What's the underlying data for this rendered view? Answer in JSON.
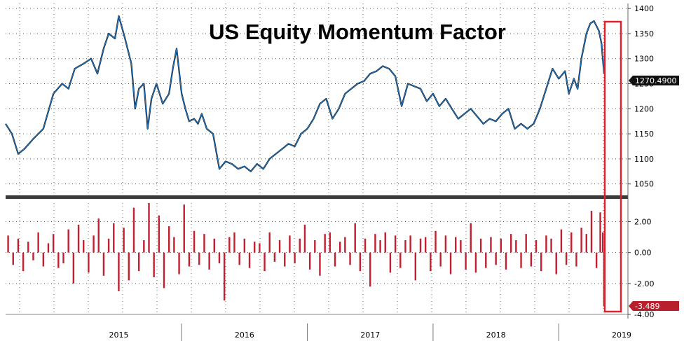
{
  "chart_data": [
    {
      "type": "line",
      "title": "US Equity Momentum Factor",
      "y_ticks": [
        "1400",
        "1350",
        "1300",
        "1250",
        "1200",
        "1150",
        "1100",
        "1050"
      ],
      "ylim": [
        1030,
        1410
      ],
      "x_ticks": [
        "2015",
        "2016",
        "2017",
        "2018",
        "2019"
      ],
      "xlim": [
        2014.6,
        2019.55
      ],
      "last_value_label": "1270.4900",
      "series": [
        {
          "color": "#1f78c8",
          "x": [
            2014.6,
            2014.65,
            2014.7,
            2014.75,
            2014.82,
            2014.9,
            2014.98,
            2015.05,
            2015.1,
            2015.15,
            2015.22,
            2015.28,
            2015.33,
            2015.38,
            2015.42,
            2015.47,
            2015.5,
            2015.55,
            2015.6,
            2015.63,
            2015.66,
            2015.7,
            2015.73,
            2015.76,
            2015.8,
            2015.85,
            2015.9,
            2015.93,
            2015.96,
            2016.0,
            2016.03,
            2016.06,
            2016.1,
            2016.13,
            2016.16,
            2016.2,
            2016.25,
            2016.3,
            2016.35,
            2016.4,
            2016.45,
            2016.5,
            2016.55,
            2016.6,
            2016.65,
            2016.7,
            2016.75,
            2016.8,
            2016.85,
            2016.9,
            2016.95,
            2017.0,
            2017.05,
            2017.1,
            2017.15,
            2017.2,
            2017.25,
            2017.3,
            2017.35,
            2017.4,
            2017.45,
            2017.5,
            2017.55,
            2017.6,
            2017.65,
            2017.7,
            2017.75,
            2017.8,
            2017.85,
            2017.9,
            2017.95,
            2018.0,
            2018.05,
            2018.1,
            2018.15,
            2018.2,
            2018.25,
            2018.3,
            2018.35,
            2018.4,
            2018.45,
            2018.5,
            2018.55,
            2018.6,
            2018.65,
            2018.7,
            2018.75,
            2018.8,
            2018.85,
            2018.9,
            2018.95,
            2019.0,
            2019.05,
            2019.08,
            2019.12,
            2019.15,
            2019.18,
            2019.22,
            2019.25,
            2019.28,
            2019.3,
            2019.32,
            2019.34,
            2019.36
          ],
          "values": [
            1170,
            1150,
            1110,
            1120,
            1140,
            1160,
            1230,
            1250,
            1240,
            1280,
            1290,
            1300,
            1270,
            1320,
            1350,
            1340,
            1385,
            1340,
            1290,
            1200,
            1240,
            1250,
            1160,
            1220,
            1250,
            1210,
            1230,
            1280,
            1320,
            1230,
            1200,
            1175,
            1180,
            1170,
            1190,
            1160,
            1150,
            1080,
            1095,
            1090,
            1080,
            1085,
            1075,
            1090,
            1080,
            1100,
            1110,
            1120,
            1130,
            1125,
            1150,
            1160,
            1180,
            1210,
            1220,
            1180,
            1200,
            1230,
            1240,
            1250,
            1255,
            1270,
            1275,
            1285,
            1280,
            1265,
            1205,
            1250,
            1245,
            1240,
            1215,
            1230,
            1205,
            1220,
            1200,
            1180,
            1190,
            1200,
            1185,
            1170,
            1180,
            1175,
            1190,
            1200,
            1160,
            1170,
            1160,
            1170,
            1200,
            1240,
            1280,
            1260,
            1275,
            1230,
            1260,
            1240,
            1300,
            1350,
            1370,
            1375,
            1365,
            1355,
            1330,
            1270.49
          ]
        }
      ]
    },
    {
      "type": "bar",
      "y_ticks": [
        "2.00",
        "0.00",
        "-2.00",
        "-4.00"
      ],
      "ylim": [
        -4.0,
        3.2
      ],
      "xlim": [
        2014.6,
        2019.55
      ],
      "last_value_label": "-3.489",
      "series": [
        {
          "color": "#c0202f",
          "x": [
            2014.62,
            2014.66,
            2014.7,
            2014.74,
            2014.78,
            2014.82,
            2014.86,
            2014.9,
            2014.94,
            2014.98,
            2015.02,
            2015.06,
            2015.1,
            2015.14,
            2015.18,
            2015.22,
            2015.26,
            2015.3,
            2015.34,
            2015.38,
            2015.42,
            2015.46,
            2015.5,
            2015.54,
            2015.58,
            2015.62,
            2015.66,
            2015.7,
            2015.74,
            2015.78,
            2015.82,
            2015.86,
            2015.9,
            2015.94,
            2015.98,
            2016.02,
            2016.06,
            2016.1,
            2016.14,
            2016.18,
            2016.22,
            2016.26,
            2016.3,
            2016.34,
            2016.38,
            2016.42,
            2016.46,
            2016.5,
            2016.54,
            2016.58,
            2016.62,
            2016.66,
            2016.7,
            2016.74,
            2016.78,
            2016.82,
            2016.86,
            2016.9,
            2016.94,
            2016.98,
            2017.02,
            2017.06,
            2017.1,
            2017.14,
            2017.18,
            2017.22,
            2017.26,
            2017.3,
            2017.34,
            2017.38,
            2017.42,
            2017.46,
            2017.5,
            2017.54,
            2017.58,
            2017.62,
            2017.66,
            2017.7,
            2017.74,
            2017.78,
            2017.82,
            2017.86,
            2017.9,
            2017.94,
            2017.98,
            2018.02,
            2018.06,
            2018.1,
            2018.14,
            2018.18,
            2018.22,
            2018.26,
            2018.3,
            2018.34,
            2018.38,
            2018.42,
            2018.46,
            2018.5,
            2018.54,
            2018.58,
            2018.62,
            2018.66,
            2018.7,
            2018.74,
            2018.78,
            2018.82,
            2018.86,
            2018.9,
            2018.94,
            2018.98,
            2019.02,
            2019.06,
            2019.1,
            2019.14,
            2019.18,
            2019.22,
            2019.26,
            2019.3,
            2019.33,
            2019.35,
            2019.36
          ],
          "values": [
            1.1,
            -0.8,
            0.9,
            -1.2,
            0.7,
            -0.5,
            1.3,
            -0.9,
            0.6,
            1.2,
            -1.0,
            -0.7,
            1.5,
            -2.0,
            1.8,
            0.8,
            -1.3,
            1.1,
            2.2,
            -1.5,
            0.9,
            1.9,
            -2.5,
            1.6,
            -1.8,
            2.9,
            -1.2,
            0.8,
            3.2,
            -1.6,
            2.4,
            -2.3,
            1.7,
            1.0,
            -1.4,
            3.1,
            -0.9,
            1.4,
            -0.8,
            1.2,
            -1.1,
            0.9,
            -0.7,
            -3.1,
            1.0,
            1.3,
            -0.8,
            0.9,
            -1.0,
            0.7,
            0.6,
            -1.2,
            1.3,
            -0.6,
            0.8,
            -0.9,
            1.1,
            -0.7,
            0.9,
            1.8,
            -1.1,
            0.8,
            -1.5,
            1.2,
            1.3,
            -0.9,
            0.7,
            1.0,
            -0.8,
            1.9,
            -1.2,
            0.9,
            -2.2,
            1.2,
            0.8,
            1.3,
            -1.3,
            1.1,
            -1.0,
            0.8,
            1.1,
            -1.8,
            0.9,
            1.0,
            -1.2,
            1.4,
            -0.9,
            1.1,
            -1.4,
            1.0,
            0.8,
            -1.1,
            1.9,
            -1.3,
            0.9,
            -1.0,
            1.0,
            -0.8,
            0.9,
            -1.1,
            1.2,
            0.8,
            -1.0,
            1.2,
            -0.9,
            0.8,
            -1.2,
            1.1,
            0.9,
            -1.4,
            1.5,
            -0.8,
            1.3,
            -0.9,
            1.6,
            1.2,
            2.7,
            -1.0,
            2.6,
            1.3,
            -3.489
          ]
        }
      ]
    }
  ]
}
